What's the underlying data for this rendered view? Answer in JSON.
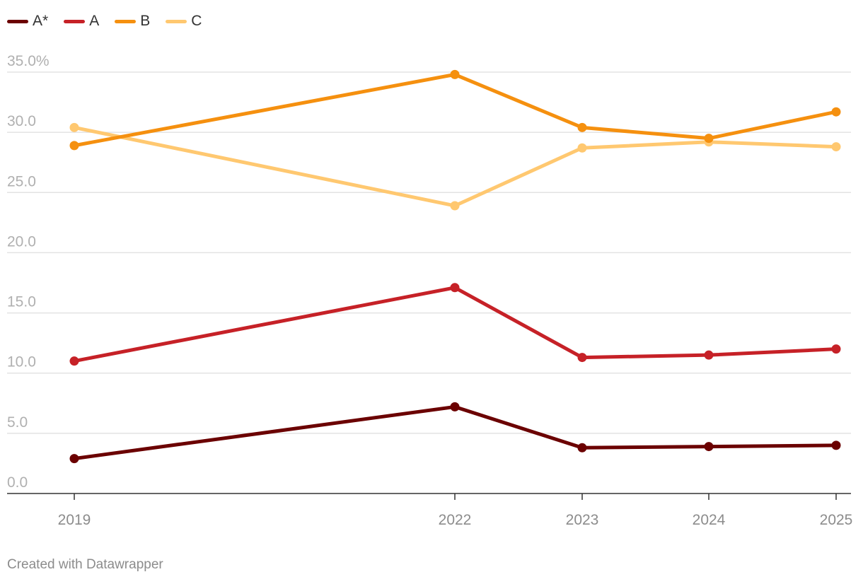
{
  "chart_data": {
    "type": "line",
    "title": "",
    "xlabel": "",
    "ylabel": "",
    "ylim": [
      0,
      35
    ],
    "y_ticks": [
      {
        "value": 0,
        "label": "0.0"
      },
      {
        "value": 5,
        "label": "5.0"
      },
      {
        "value": 10,
        "label": "10.0"
      },
      {
        "value": 15,
        "label": "15.0"
      },
      {
        "value": 20,
        "label": "20.0"
      },
      {
        "value": 25,
        "label": "25.0"
      },
      {
        "value": 30,
        "label": "30.0"
      },
      {
        "value": 35,
        "label": "35.0%"
      }
    ],
    "x": [
      2019,
      2022,
      2023,
      2024,
      2025
    ],
    "x_labels": [
      "2019",
      "2022",
      "2023",
      "2024",
      "2025"
    ],
    "grid": true,
    "legend_position": "top-left",
    "series": [
      {
        "name": "A*",
        "color": "#6b0000",
        "values": [
          2.9,
          7.2,
          3.8,
          3.9,
          4.0
        ]
      },
      {
        "name": "A",
        "color": "#c62127",
        "values": [
          11.0,
          17.1,
          11.3,
          11.5,
          12.0
        ]
      },
      {
        "name": "B",
        "color": "#f5900f",
        "values": [
          28.9,
          34.8,
          30.4,
          29.5,
          31.7
        ]
      },
      {
        "name": "C",
        "color": "#ffc870",
        "values": [
          30.4,
          23.9,
          28.7,
          29.2,
          28.8
        ]
      }
    ]
  },
  "footer": {
    "credit": "Created with Datawrapper"
  }
}
